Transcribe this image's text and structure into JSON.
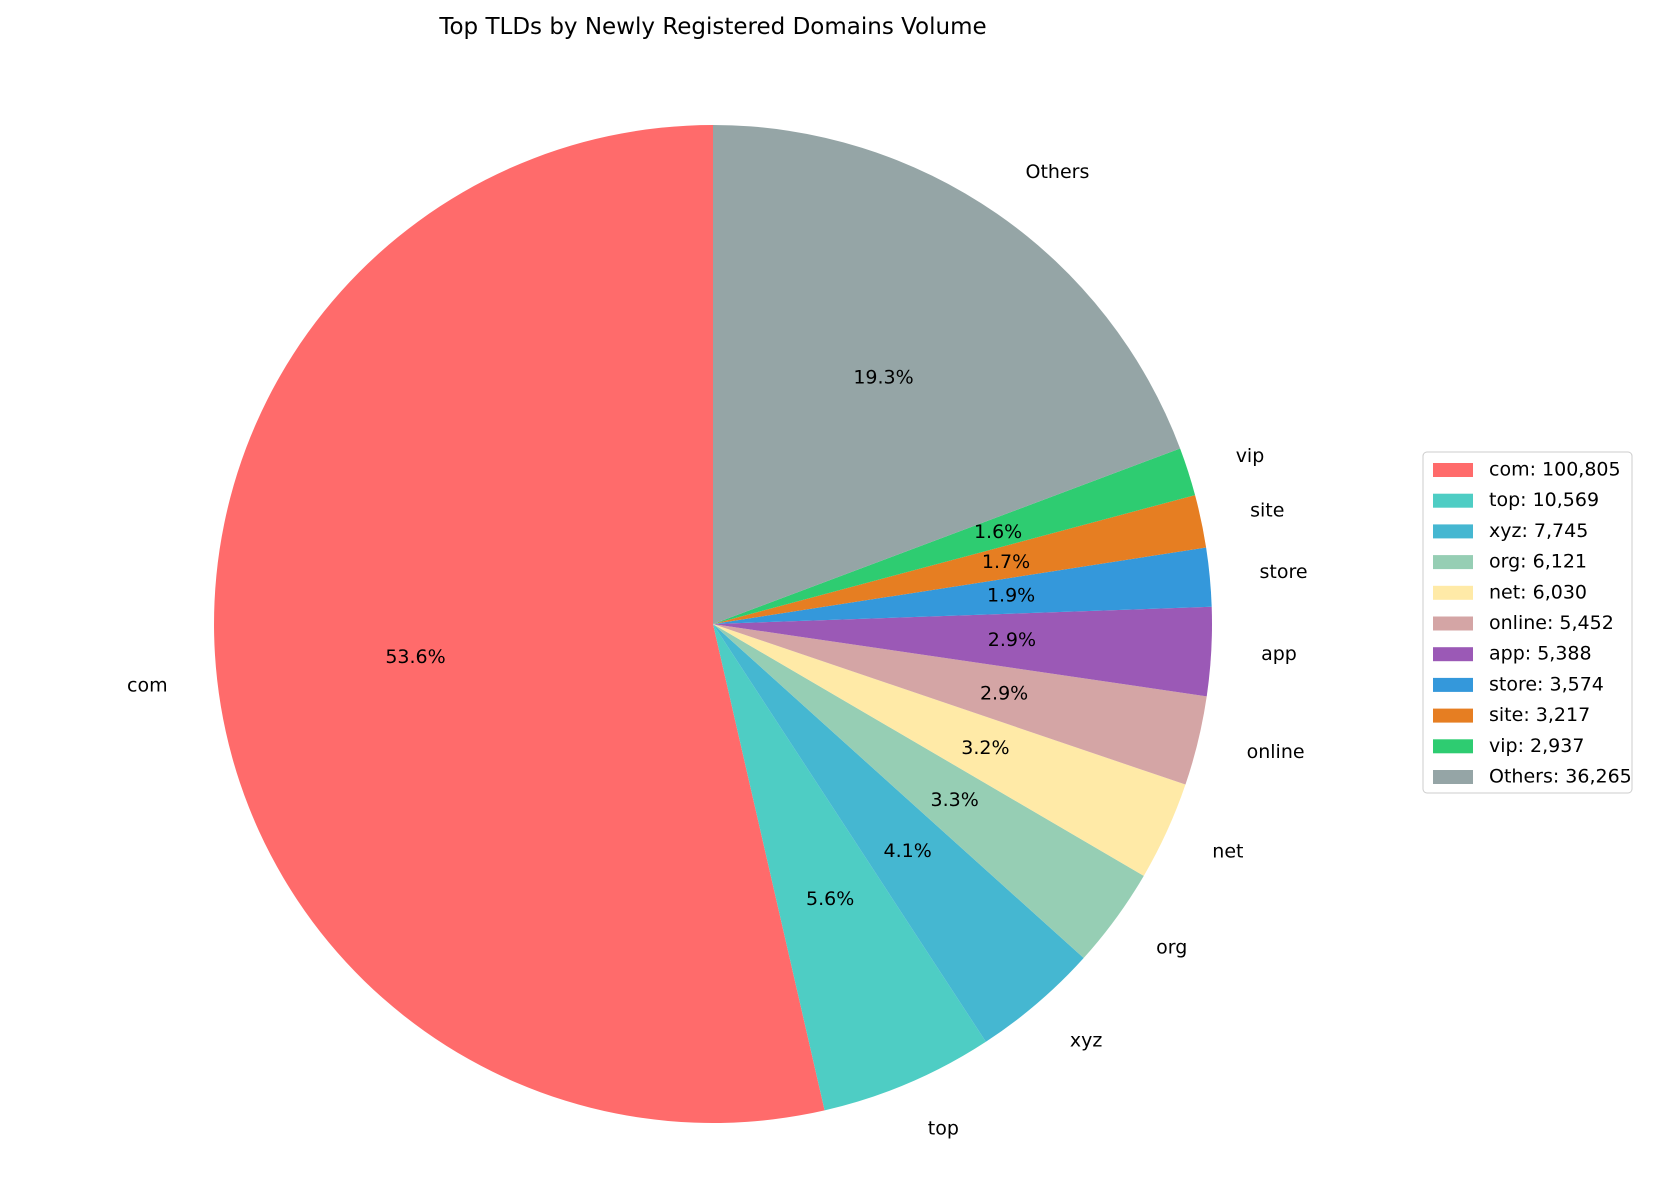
{
  "chart_data": {
    "type": "pie",
    "title": "Top TLDs by Newly Registered Domains Volume",
    "start_angle_deg": 90,
    "direction": "counterclockwise",
    "slices": [
      {
        "label": "com",
        "value": 100805,
        "percent_label": "53.6%",
        "legend": "com: 100,805",
        "color": "#ff6b6b"
      },
      {
        "label": "top",
        "value": 10569,
        "percent_label": "5.6%",
        "legend": "top: 10,569",
        "color": "#4ecdc4"
      },
      {
        "label": "xyz",
        "value": 7745,
        "percent_label": "4.1%",
        "legend": "xyz: 7,745",
        "color": "#45b7d1"
      },
      {
        "label": "org",
        "value": 6121,
        "percent_label": "3.3%",
        "legend": "org: 6,121",
        "color": "#96ceb4"
      },
      {
        "label": "net",
        "value": 6030,
        "percent_label": "3.2%",
        "legend": "net: 6,030",
        "color": "#ffeaa7"
      },
      {
        "label": "online",
        "value": 5452,
        "percent_label": "2.9%",
        "legend": "online: 5,452",
        "color": "#d4a5a5"
      },
      {
        "label": "app",
        "value": 5388,
        "percent_label": "2.9%",
        "legend": "app: 5,388",
        "color": "#9b59b6"
      },
      {
        "label": "store",
        "value": 3574,
        "percent_label": "1.9%",
        "legend": "store: 3,574",
        "color": "#3498db"
      },
      {
        "label": "site",
        "value": 3217,
        "percent_label": "1.7%",
        "legend": "site: 3,217",
        "color": "#e67e22"
      },
      {
        "label": "vip",
        "value": 2937,
        "percent_label": "1.6%",
        "legend": "vip: 2,937",
        "color": "#2ecc71"
      },
      {
        "label": "Others",
        "value": 36265,
        "percent_label": "19.3%",
        "legend": "Others: 36,265",
        "color": "#95a5a6"
      }
    ],
    "legend_position": "right"
  }
}
